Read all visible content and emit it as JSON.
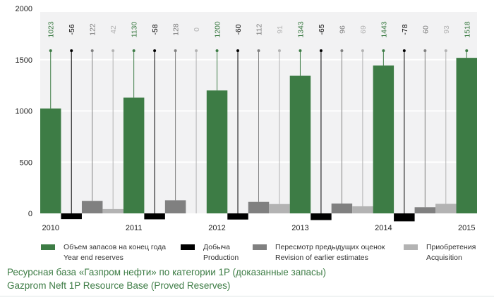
{
  "chart_data": {
    "type": "bar",
    "title": "Ресурсная база «Газпром нефти» по категории 1P (доказанные запасы)",
    "subtitle": "Gazprom Neft 1P Resource Base (Proved Reserves)",
    "ylim": [
      0,
      2000
    ],
    "yticks": [
      "0",
      "500",
      "1000",
      "1500",
      "2000"
    ],
    "grid": true,
    "legend_placement": "bottom",
    "year_labels": [
      "2010",
      "2011",
      "2012",
      "2013",
      "2014",
      "2015"
    ],
    "series": [
      {
        "name": "Объем запасов на конец года",
        "name_en": "Year end reserves",
        "color": "#3d7c45",
        "values": [
          1023,
          1130,
          1200,
          1343,
          1443,
          1518
        ]
      },
      {
        "name": "Добыча",
        "name_en": "Production",
        "color": "#000000",
        "values": [
          -56,
          -58,
          -60,
          -65,
          -78
        ]
      },
      {
        "name": "Пересмотр предыдущих оценок",
        "name_en": "Revision of earlier estimates",
        "color": "#808080",
        "values": [
          122,
          128,
          112,
          96,
          60
        ]
      },
      {
        "name": "Приобретения",
        "name_en": "Acquisition",
        "color": "#b3b3b3",
        "values": [
          42,
          0,
          91,
          69,
          93
        ]
      }
    ]
  }
}
